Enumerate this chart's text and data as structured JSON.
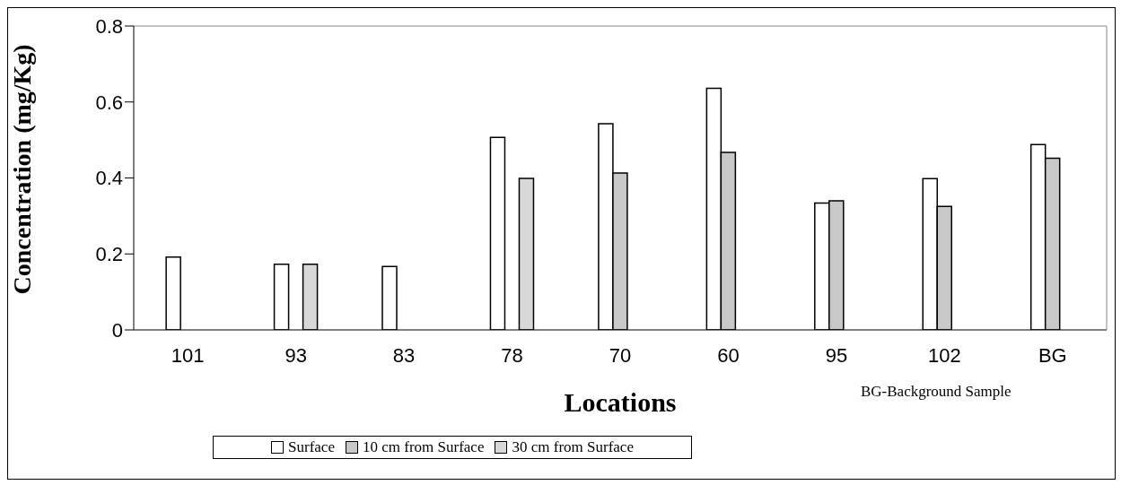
{
  "chart_data": {
    "type": "bar",
    "xlabel": "Locations",
    "ylabel": "Concentration (mg/Kg)",
    "categories": [
      "101",
      "93",
      "83",
      "78",
      "70",
      "60",
      "95",
      "102",
      "BG"
    ],
    "series": [
      {
        "name": "Surface",
        "color": "#ffffff",
        "values": [
          0.192,
          0.173,
          0.167,
          0.507,
          0.543,
          0.636,
          0.334,
          0.398,
          0.488
        ]
      },
      {
        "name": "10 cm from Surface",
        "color": "#c8c8c8",
        "values": [
          null,
          null,
          null,
          null,
          0.413,
          0.467,
          0.34,
          0.325,
          0.452
        ]
      },
      {
        "name": "30 cm from Surface",
        "color": "#d8d8d8",
        "values": [
          null,
          0.173,
          null,
          0.399,
          null,
          null,
          null,
          null,
          null
        ]
      }
    ],
    "ylim": [
      0,
      0.8
    ],
    "yticks": [
      0,
      0.2,
      0.4,
      0.6,
      0.8
    ],
    "legend": "bottom",
    "annotations": [
      "BG-Background Sample"
    ]
  }
}
